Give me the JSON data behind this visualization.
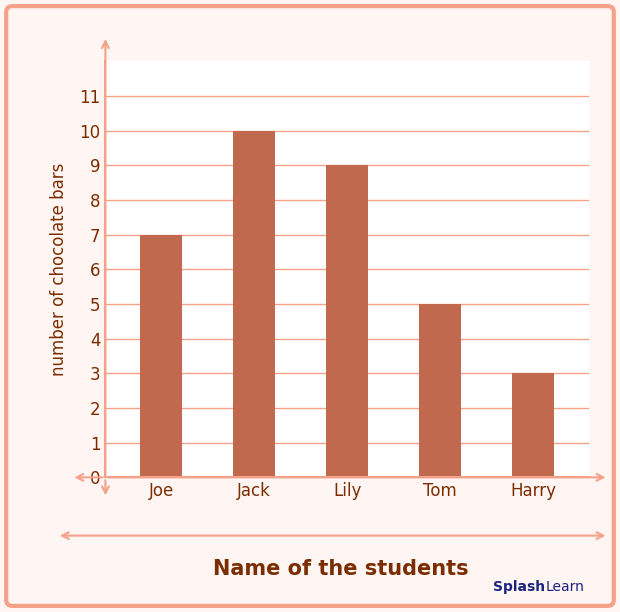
{
  "categories": [
    "Joe",
    "Jack",
    "Lily",
    "Tom",
    "Harry"
  ],
  "values": [
    7,
    10,
    9,
    5,
    3
  ],
  "bar_color": "#c1694f",
  "background_color": "#ffffff",
  "xlabel": "Name of the students",
  "ylabel": "number of chocolate bars",
  "ylim": [
    0,
    12
  ],
  "yticks": [
    0,
    1,
    2,
    3,
    4,
    5,
    6,
    7,
    8,
    9,
    10,
    11
  ],
  "grid_color": "#f5a089",
  "axis_color": "#f5a089",
  "label_color": "#7b2d00",
  "xlabel_fontsize": 15,
  "ylabel_fontsize": 12,
  "tick_fontsize": 12,
  "border_color": "#f5a089",
  "outer_bg": "#fff5f3"
}
